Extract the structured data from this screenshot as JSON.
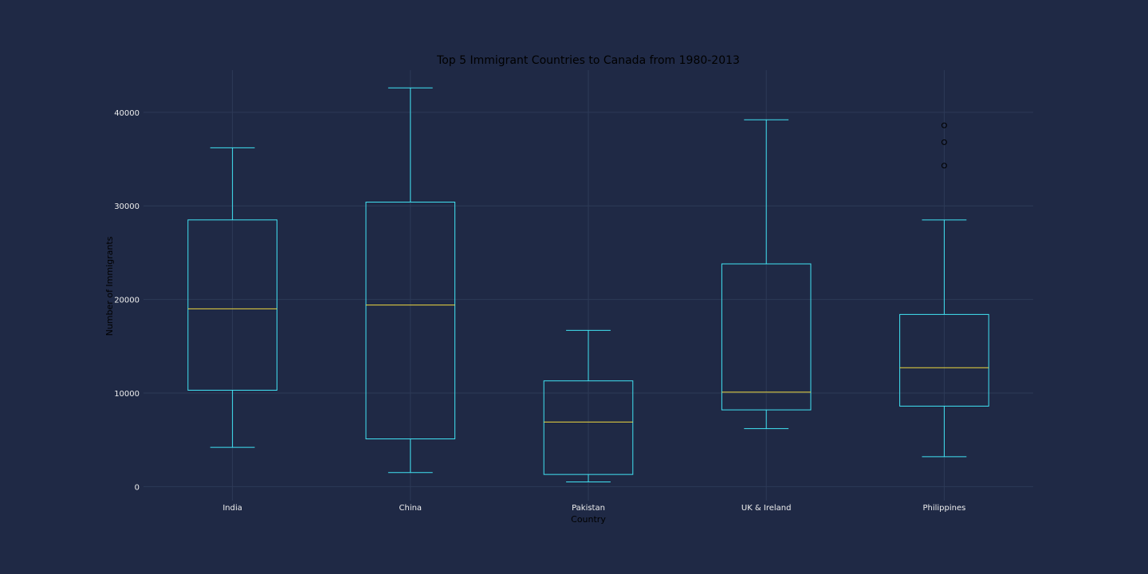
{
  "page": {
    "background": "#1f2945"
  },
  "chart_data": {
    "type": "box",
    "title": "Top 5 Immigrant Countries to Canada from 1980-2013",
    "xlabel": "Country",
    "ylabel": "Number of Immigrants",
    "ylim": [
      -1500,
      44500
    ],
    "yticks": [
      0,
      10000,
      20000,
      30000,
      40000
    ],
    "ytick_labels": [
      "0",
      "10000",
      "20000",
      "30000",
      "40000"
    ],
    "grid": true,
    "legend": "none",
    "colors": {
      "box": "#41e3f3",
      "median": "#eed93f",
      "whisker": "#41e3f3",
      "flier": "#000000",
      "grid": "#2d3a57",
      "title": "#000000",
      "axis_label": "#000000",
      "tick_label": "#eeeeee"
    },
    "categories": [
      "India",
      "China",
      "Pakistan",
      "UK & Ireland",
      "Philippines"
    ],
    "boxes": [
      {
        "label": "India",
        "whisker_low": 4200,
        "q1": 10300,
        "median": 19000,
        "q3": 28500,
        "whisker_high": 36200,
        "fliers": []
      },
      {
        "label": "China",
        "whisker_low": 1500,
        "q1": 5100,
        "median": 19400,
        "q3": 30400,
        "whisker_high": 42600,
        "fliers": []
      },
      {
        "label": "Pakistan",
        "whisker_low": 500,
        "q1": 1300,
        "median": 6900,
        "q3": 11300,
        "whisker_high": 16700,
        "fliers": []
      },
      {
        "label": "UK & Ireland",
        "whisker_low": 6200,
        "q1": 8200,
        "median": 10100,
        "q3": 23800,
        "whisker_high": 39200,
        "fliers": []
      },
      {
        "label": "Philippines",
        "whisker_low": 3200,
        "q1": 8600,
        "median": 12700,
        "q3": 18400,
        "whisker_high": 28500,
        "fliers": [
          34300,
          36800,
          38600
        ]
      }
    ]
  }
}
